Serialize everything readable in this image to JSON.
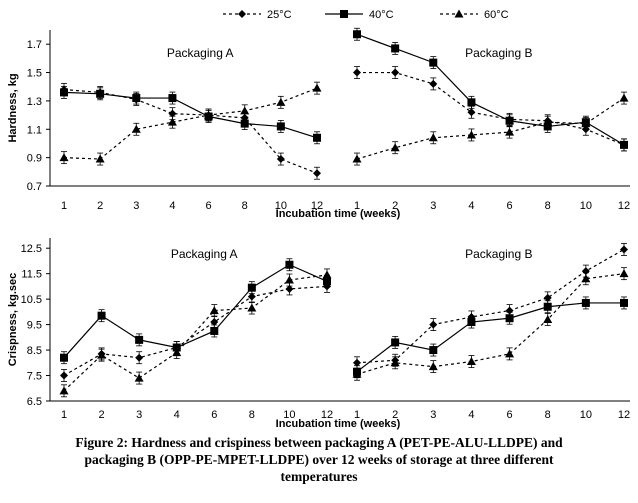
{
  "legend": [
    {
      "label": "25°C",
      "marker": "diamond",
      "dash": "3,3"
    },
    {
      "label": "40°C",
      "marker": "square",
      "dash": ""
    },
    {
      "label": "60°C",
      "marker": "triangle",
      "dash": "3,3"
    }
  ],
  "shared": {
    "categories": [
      "1",
      "2",
      "3",
      "4",
      "6",
      "8",
      "10",
      "12"
    ],
    "xlabel": "Incubation time (weeks)"
  },
  "chart_data": [
    {
      "type": "line",
      "ylabel": "Hardness, kg",
      "yticks": [
        "0.7",
        "0.9",
        "1.1",
        "1.3",
        "1.5",
        "1.7"
      ],
      "ylim": [
        0.7,
        1.8
      ],
      "panels": [
        {
          "title": "Packaging A",
          "series": [
            {
              "name": "25°C",
              "values": [
                1.38,
                1.36,
                1.31,
                1.21,
                1.2,
                1.18,
                0.89,
                0.79
              ]
            },
            {
              "name": "40°C",
              "values": [
                1.36,
                1.35,
                1.32,
                1.32,
                1.19,
                1.14,
                1.12,
                1.04
              ]
            },
            {
              "name": "60°C",
              "values": [
                0.9,
                0.89,
                1.1,
                1.15,
                1.2,
                1.23,
                1.29,
                1.39
              ]
            }
          ]
        },
        {
          "title": "Packaging B",
          "series": [
            {
              "name": "25°C",
              "values": [
                1.5,
                1.5,
                1.42,
                1.22,
                1.17,
                1.16,
                1.1,
                0.99
              ]
            },
            {
              "name": "40°C",
              "values": [
                1.77,
                1.67,
                1.57,
                1.29,
                1.16,
                1.12,
                1.15,
                0.99
              ]
            },
            {
              "name": "60°C",
              "values": [
                0.89,
                0.97,
                1.04,
                1.06,
                1.08,
                1.15,
                1.14,
                1.32
              ]
            }
          ]
        }
      ]
    },
    {
      "type": "line",
      "ylabel": "Crispness, kg.sec",
      "yticks": [
        "6.5",
        "7.5",
        "8.5",
        "9.5",
        "10.5",
        "11.5",
        "12.5"
      ],
      "ylim": [
        6.5,
        12.9
      ],
      "panels": [
        {
          "title": "Packaging A",
          "series": [
            {
              "name": "25°C",
              "values": [
                7.5,
                8.35,
                8.2,
                8.6,
                9.6,
                10.6,
                10.9,
                11.0
              ]
            },
            {
              "name": "40°C",
              "values": [
                8.2,
                9.85,
                8.9,
                8.6,
                9.25,
                10.95,
                11.85,
                11.2
              ]
            },
            {
              "name": "60°C",
              "values": [
                6.9,
                8.3,
                7.4,
                8.4,
                10.05,
                10.15,
                11.25,
                11.45
              ]
            }
          ]
        },
        {
          "title": "Packaging B",
          "series": [
            {
              "name": "25°C",
              "values": [
                8.0,
                8.1,
                9.5,
                9.8,
                10.05,
                10.55,
                11.6,
                12.45
              ]
            },
            {
              "name": "40°C",
              "values": [
                7.65,
                8.8,
                8.5,
                9.6,
                9.75,
                10.2,
                10.35,
                10.35
              ]
            },
            {
              "name": "60°C",
              "values": [
                7.55,
                8.0,
                7.85,
                8.05,
                8.35,
                9.7,
                11.3,
                11.5
              ]
            }
          ]
        }
      ]
    }
  ],
  "caption": [
    "Figure 2: Hardness and crispiness between packaging A (PET-PE-ALU-LLDPE) and",
    "packaging B (OPP-PE-MPET-LLDPE) over 12 weeks of storage at three different",
    "temperatures"
  ]
}
